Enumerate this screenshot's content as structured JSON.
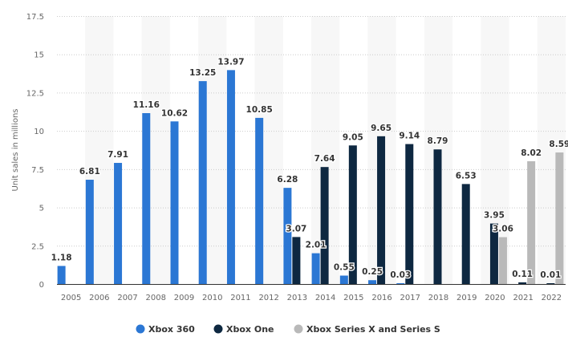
{
  "chart_data": {
    "type": "bar",
    "title": "",
    "xlabel": "",
    "ylabel": "Unit sales in millions",
    "ylim": [
      0,
      17.5
    ],
    "yticks": [
      "0",
      "2.5",
      "5",
      "7.5",
      "10",
      "12.5",
      "15",
      "17.5"
    ],
    "grid": true,
    "legend_position": "bottom",
    "categories": [
      "2005",
      "2006",
      "2007",
      "2008",
      "2009",
      "2010",
      "2011",
      "2012",
      "2013",
      "2014",
      "2015",
      "2016",
      "2017",
      "2018",
      "2019",
      "2020",
      "2021",
      "2022"
    ],
    "series": [
      {
        "name": "Xbox 360",
        "color": "#2b77d4",
        "values": [
          1.18,
          6.81,
          7.91,
          11.16,
          10.62,
          13.25,
          13.97,
          10.85,
          6.28,
          2.01,
          0.55,
          0.25,
          0.03,
          null,
          null,
          null,
          null,
          null
        ]
      },
      {
        "name": "Xbox One",
        "color": "#0e2841",
        "values": [
          null,
          null,
          null,
          null,
          null,
          null,
          null,
          null,
          3.07,
          7.64,
          9.05,
          9.65,
          9.14,
          8.79,
          6.53,
          3.95,
          0.11,
          0.01
        ]
      },
      {
        "name": "Xbox Series X and Series S",
        "color": "#b9b9b9",
        "values": [
          null,
          null,
          null,
          null,
          null,
          null,
          null,
          null,
          null,
          null,
          null,
          null,
          null,
          null,
          null,
          3.06,
          8.02,
          8.59
        ]
      }
    ]
  }
}
